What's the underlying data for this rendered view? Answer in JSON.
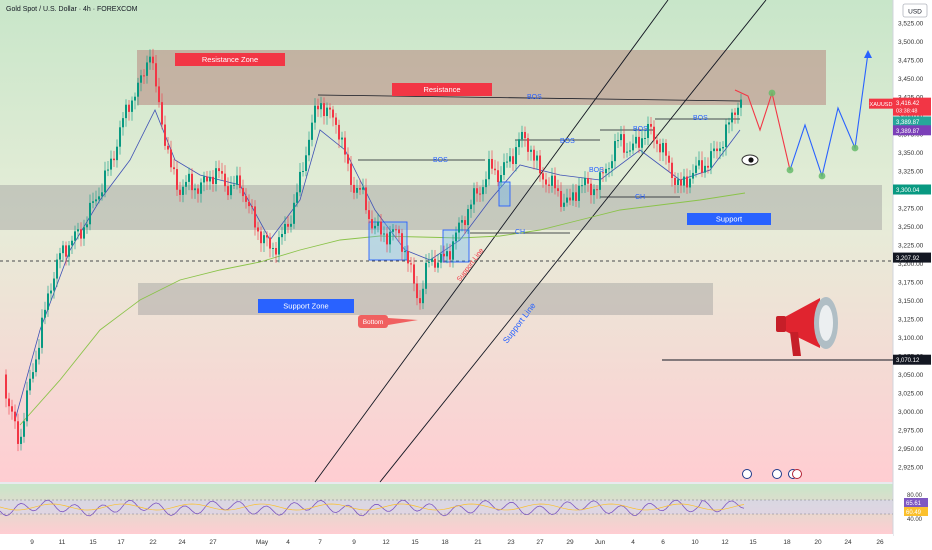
{
  "header": {
    "title": "Gold Spot / U.S. Dollar · 4h · FOREXCOM",
    "currency": "USD"
  },
  "colors": {
    "up": "#089981",
    "down": "#f23645",
    "resistance_label": "#f23645",
    "support_label": "#2962ff",
    "zone": "#b8877f",
    "sup_zone": "#9e9e9e",
    "bg_top": "#c8e6c9",
    "bg_bottom": "#ffcdd2"
  },
  "chart_data": {
    "type": "candlestick",
    "symbol": "XAUUSD",
    "ylim": [
      2900,
      3550
    ],
    "y_ticks": [
      "3,525.00",
      "3,500.00",
      "3,475.00",
      "3,450.00",
      "3,425.00",
      "3,400.00",
      "3,375.00",
      "3,350.00",
      "3,325.00",
      "3,300.00",
      "3,275.00",
      "3,250.00",
      "3,225.00",
      "3,200.00",
      "3,175.00",
      "3,150.00",
      "3,125.00",
      "3,100.00",
      "3,075.00",
      "3,050.00",
      "3,025.00",
      "3,000.00",
      "2,975.00",
      "2,950.00",
      "2,925.00"
    ],
    "x_ticks": [
      "9",
      "11",
      "15",
      "17",
      "22",
      "24",
      "27",
      "May",
      "4",
      "7",
      "9",
      "12",
      "15",
      "18",
      "21",
      "23",
      "27",
      "29",
      "Jun",
      "4",
      "6",
      "10",
      "12",
      "15",
      "18",
      "20",
      "24",
      "26"
    ],
    "price_tags": [
      {
        "label": "XAUUSD",
        "value": "3,416.42",
        "sub": "03:38:48",
        "color": "#f23645",
        "price": 3416
      },
      {
        "value": "3,389.87",
        "color": "#26a69a",
        "price": 3392
      },
      {
        "value": "3,389.87",
        "color": "#7b3fb8",
        "price": 3380
      },
      {
        "value": "3,300.04",
        "color": "#089981",
        "price": 3300
      },
      {
        "value": "3,207.92",
        "color": "#131722",
        "price": 3208
      },
      {
        "value": "3,070.12",
        "color": "#131722",
        "price": 3070
      }
    ],
    "zones": [
      {
        "name": "Resistance Zone",
        "label": "Resistance Zone",
        "price_top": 3500,
        "price_bottom": 3425
      },
      {
        "name": "Resistance",
        "label": "Resistance",
        "price": 3435
      },
      {
        "name": "Support",
        "label": "Support",
        "price_top": 3310,
        "price_bottom": 3250
      },
      {
        "name": "Support Zone",
        "label": "Support Zone",
        "price_top": 3178,
        "price_bottom": 3130
      }
    ],
    "annotations": {
      "bos": [
        "BOS",
        "BOS",
        "BOS",
        "BOS",
        "BOS",
        "BOS"
      ],
      "ch": [
        "CH",
        "CH"
      ],
      "support_line": "Support Line",
      "supply_line": "Support Line",
      "bottom": "Bottom",
      "support_label": "Support"
    },
    "rsi": {
      "levels": [
        "80.00",
        "40.00"
      ],
      "tags": [
        "65.61",
        "60.49"
      ]
    }
  }
}
